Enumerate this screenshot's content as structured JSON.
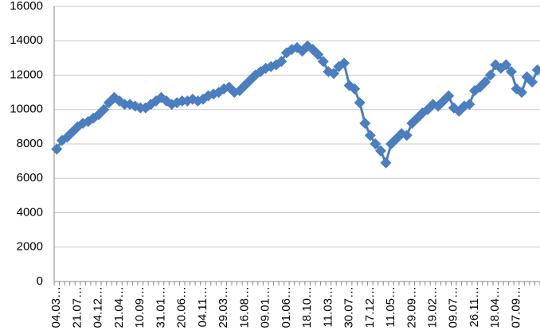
{
  "chart_data": {
    "type": "line",
    "color": "#4a7ebf",
    "categories": [
      "04.03…",
      null,
      null,
      null,
      "21.07…",
      null,
      null,
      null,
      "04.12…",
      null,
      null,
      null,
      "21.04…",
      null,
      null,
      null,
      "10.09…",
      null,
      null,
      null,
      "31.01…",
      null,
      null,
      null,
      "20.06…",
      null,
      null,
      null,
      "04.11…",
      null,
      null,
      null,
      "29.03…",
      null,
      null,
      null,
      "16.08…",
      null,
      null,
      null,
      "09.01…",
      null,
      null,
      null,
      "01.06…",
      null,
      null,
      null,
      "18.10…",
      null,
      null,
      null,
      "11.03…",
      null,
      null,
      null,
      "30.07…",
      null,
      null,
      null,
      "17.12…",
      null,
      null,
      null,
      "11.05…",
      null,
      null,
      null,
      "29.09…",
      null,
      null,
      null,
      "19.02…",
      null,
      null,
      null,
      "09.07…",
      null,
      null,
      null,
      "26.11…",
      null,
      null,
      null,
      "18.04…",
      null,
      null,
      null,
      "07.09…",
      null,
      null,
      null,
      null
    ],
    "values": [
      7700,
      8200,
      8400,
      8700,
      9000,
      9200,
      9300,
      9500,
      9700,
      10000,
      10400,
      10700,
      10500,
      10300,
      10300,
      10200,
      10100,
      10100,
      10300,
      10500,
      10700,
      10500,
      10300,
      10400,
      10500,
      10500,
      10600,
      10500,
      10600,
      10800,
      10900,
      11000,
      11200,
      11300,
      11000,
      11100,
      11400,
      11700,
      12000,
      12200,
      12400,
      12500,
      12600,
      12800,
      13300,
      13500,
      13600,
      13400,
      13700,
      13500,
      13200,
      12800,
      12200,
      12100,
      12500,
      12700,
      11400,
      11200,
      10400,
      9200,
      8500,
      8000,
      7600,
      6900,
      8000,
      8300,
      8600,
      8500,
      9200,
      9500,
      9800,
      10000,
      10300,
      10200,
      10500,
      10800,
      10100,
      9900,
      10200,
      10300,
      11100,
      11300,
      11600,
      12000,
      12600,
      12400,
      12600,
      12200,
      11200,
      11000,
      11900,
      11600,
      12300
    ],
    "ylim": [
      0,
      16000
    ],
    "yticks": [
      0,
      2000,
      4000,
      6000,
      8000,
      10000,
      12000,
      14000,
      16000
    ],
    "grid": true
  }
}
